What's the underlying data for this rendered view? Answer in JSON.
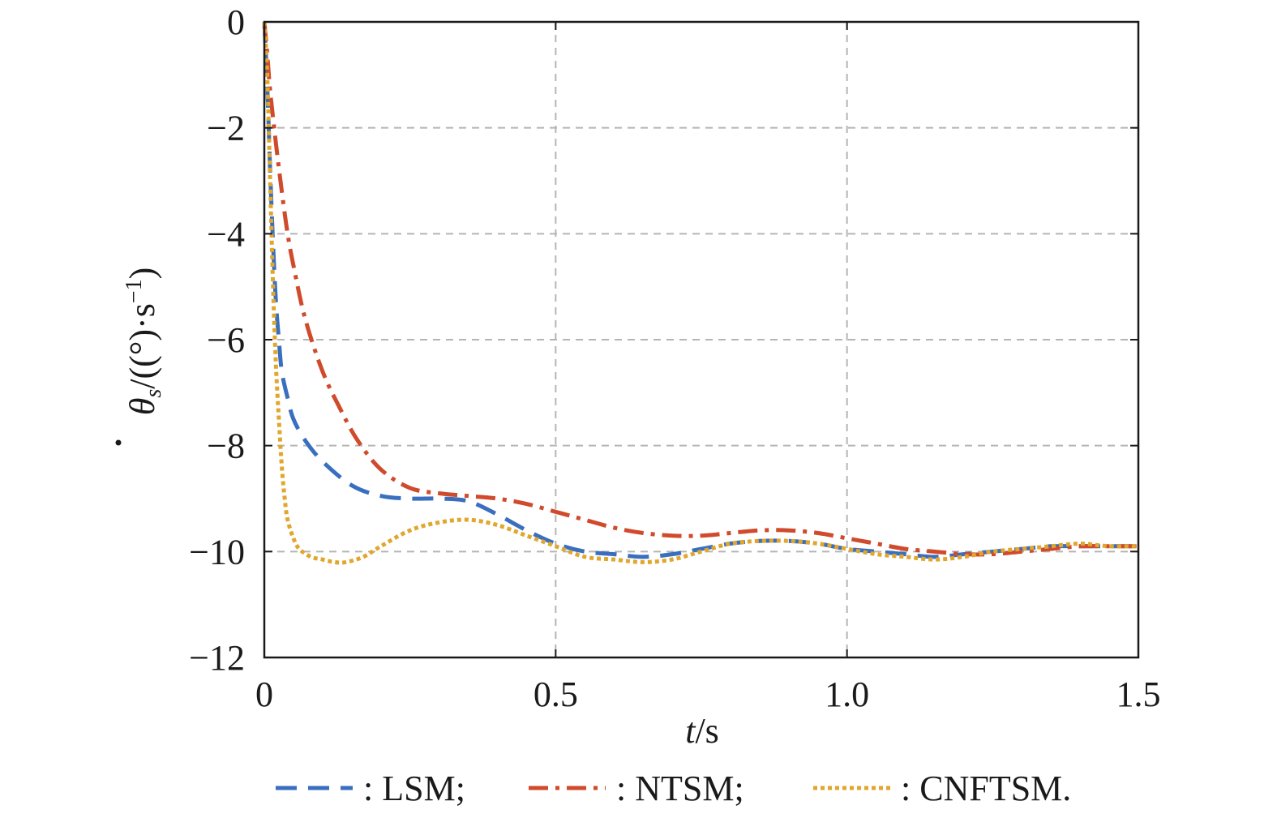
{
  "chart_data": {
    "type": "line",
    "xlabel_var": "t",
    "xlabel_unit": "/s",
    "ylabel_var": "θ",
    "ylabel_sub": "s",
    "ylabel_unit": "/((°)·s",
    "ylabel_exp": "−1",
    "ylabel_close": ")",
    "xlim": [
      0,
      1.5
    ],
    "ylim": [
      -12,
      0
    ],
    "xticks": [
      0,
      0.5,
      1.0,
      1.5
    ],
    "xtick_labels": [
      "0",
      "0.5",
      "1.0",
      "1.5"
    ],
    "yticks": [
      0,
      -2,
      -4,
      -6,
      -8,
      -10,
      -12
    ],
    "ytick_labels": [
      "0",
      "−2",
      "−4",
      "−6",
      "−8",
      "−10",
      "−12"
    ],
    "grid": true,
    "legend_position": "bottom",
    "series": [
      {
        "name": ": LSM;",
        "color": "#3a6fc0",
        "dash": "dashed",
        "x": [
          0,
          0.005,
          0.01,
          0.015,
          0.02,
          0.025,
          0.03,
          0.04,
          0.05,
          0.07,
          0.1,
          0.15,
          0.2,
          0.25,
          0.3,
          0.35,
          0.4,
          0.45,
          0.5,
          0.55,
          0.6,
          0.65,
          0.7,
          0.75,
          0.8,
          0.85,
          0.9,
          0.95,
          1.0,
          1.05,
          1.1,
          1.15,
          1.2,
          1.25,
          1.3,
          1.35,
          1.4,
          1.45,
          1.5
        ],
        "y": [
          0,
          -1.2,
          -2.8,
          -4.2,
          -5.3,
          -6.0,
          -6.6,
          -7.1,
          -7.5,
          -7.9,
          -8.3,
          -8.75,
          -8.95,
          -9.0,
          -9.0,
          -9.05,
          -9.3,
          -9.6,
          -9.85,
          -10.0,
          -10.05,
          -10.1,
          -10.05,
          -9.95,
          -9.85,
          -9.8,
          -9.8,
          -9.85,
          -9.95,
          -10.0,
          -10.05,
          -10.1,
          -10.05,
          -10.0,
          -9.95,
          -9.9,
          -9.9,
          -9.9,
          -9.9
        ]
      },
      {
        "name": ": NTSM;",
        "color": "#d04a2c",
        "dash": "dashdot",
        "x": [
          0,
          0.005,
          0.01,
          0.02,
          0.03,
          0.04,
          0.05,
          0.07,
          0.1,
          0.13,
          0.16,
          0.2,
          0.25,
          0.3,
          0.35,
          0.4,
          0.45,
          0.5,
          0.55,
          0.6,
          0.65,
          0.7,
          0.75,
          0.8,
          0.85,
          0.9,
          0.95,
          1.0,
          1.05,
          1.1,
          1.15,
          1.2,
          1.25,
          1.3,
          1.35,
          1.4,
          1.45,
          1.5
        ],
        "y": [
          0,
          -0.6,
          -1.3,
          -2.3,
          -3.2,
          -4.0,
          -4.6,
          -5.6,
          -6.6,
          -7.3,
          -7.9,
          -8.45,
          -8.8,
          -8.9,
          -8.95,
          -9.0,
          -9.1,
          -9.25,
          -9.4,
          -9.55,
          -9.65,
          -9.7,
          -9.7,
          -9.65,
          -9.6,
          -9.6,
          -9.65,
          -9.75,
          -9.85,
          -9.95,
          -10.0,
          -10.05,
          -10.05,
          -10.0,
          -9.95,
          -9.9,
          -9.9,
          -9.9
        ]
      },
      {
        "name": ": CNFTSM.",
        "color": "#e0a72e",
        "dash": "dotted",
        "x": [
          0,
          0.005,
          0.01,
          0.015,
          0.02,
          0.025,
          0.03,
          0.035,
          0.04,
          0.05,
          0.06,
          0.08,
          0.1,
          0.12,
          0.14,
          0.17,
          0.2,
          0.25,
          0.3,
          0.35,
          0.4,
          0.45,
          0.5,
          0.55,
          0.6,
          0.65,
          0.7,
          0.75,
          0.8,
          0.85,
          0.9,
          0.95,
          1.0,
          1.05,
          1.1,
          1.15,
          1.2,
          1.25,
          1.3,
          1.35,
          1.4,
          1.45,
          1.5
        ],
        "y": [
          0,
          -1.0,
          -3.0,
          -5.0,
          -6.5,
          -7.5,
          -8.4,
          -9.0,
          -9.4,
          -9.75,
          -9.95,
          -10.1,
          -10.15,
          -10.2,
          -10.2,
          -10.1,
          -9.9,
          -9.6,
          -9.45,
          -9.4,
          -9.5,
          -9.7,
          -9.9,
          -10.1,
          -10.15,
          -10.2,
          -10.15,
          -10.0,
          -9.85,
          -9.8,
          -9.8,
          -9.85,
          -9.95,
          -10.05,
          -10.1,
          -10.15,
          -10.1,
          -10.0,
          -9.95,
          -9.9,
          -9.85,
          -9.9,
          -9.9
        ]
      }
    ]
  }
}
